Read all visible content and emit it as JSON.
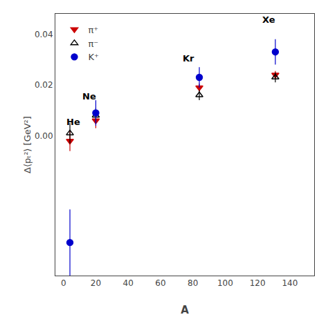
{
  "chart_data": {
    "type": "scatter",
    "x_label": "A",
    "y_label": "Δ⟨pₜ²⟩ [GeV²]",
    "xlim": [
      -5,
      155
    ],
    "ylim": [
      -0.055,
      0.048
    ],
    "xticks": [
      0,
      20,
      40,
      60,
      80,
      100,
      120,
      140
    ],
    "yticks": [
      {
        "value": 0.0,
        "label": "0.00"
      },
      0.02,
      0.04
    ],
    "grid": false,
    "legend": "upper left",
    "series": [
      {
        "name": "π⁺",
        "color": "#cc0000",
        "marker": "triangle-down",
        "x": [
          4,
          20,
          84,
          131
        ],
        "values": [
          -0.002,
          0.006,
          0.019,
          0.024
        ],
        "yerr": [
          0.004,
          0.003,
          0.0015,
          0.0015
        ]
      },
      {
        "name": "π⁻",
        "color": "#000000",
        "marker": "triangle-up-open",
        "x": [
          4,
          20,
          84,
          131
        ],
        "values": [
          0.001,
          0.008,
          0.016,
          0.023
        ],
        "yerr": [
          0.004,
          0.003,
          0.002,
          0.002
        ]
      },
      {
        "name": "K⁺",
        "color": "#0000cc",
        "marker": "circle",
        "x": [
          4,
          20,
          84,
          131
        ],
        "values": [
          -0.042,
          0.009,
          0.023,
          0.033
        ],
        "yerr": [
          0.013,
          0.005,
          0.004,
          0.005
        ]
      }
    ],
    "annotations": [
      {
        "text": "He",
        "x": 1,
        "y": 0.003
      },
      {
        "text": "Ne",
        "x": 11,
        "y": 0.013
      },
      {
        "text": "Kr",
        "x": 73,
        "y": 0.028
      },
      {
        "text": "Xe",
        "x": 122,
        "y": 0.043
      }
    ]
  }
}
